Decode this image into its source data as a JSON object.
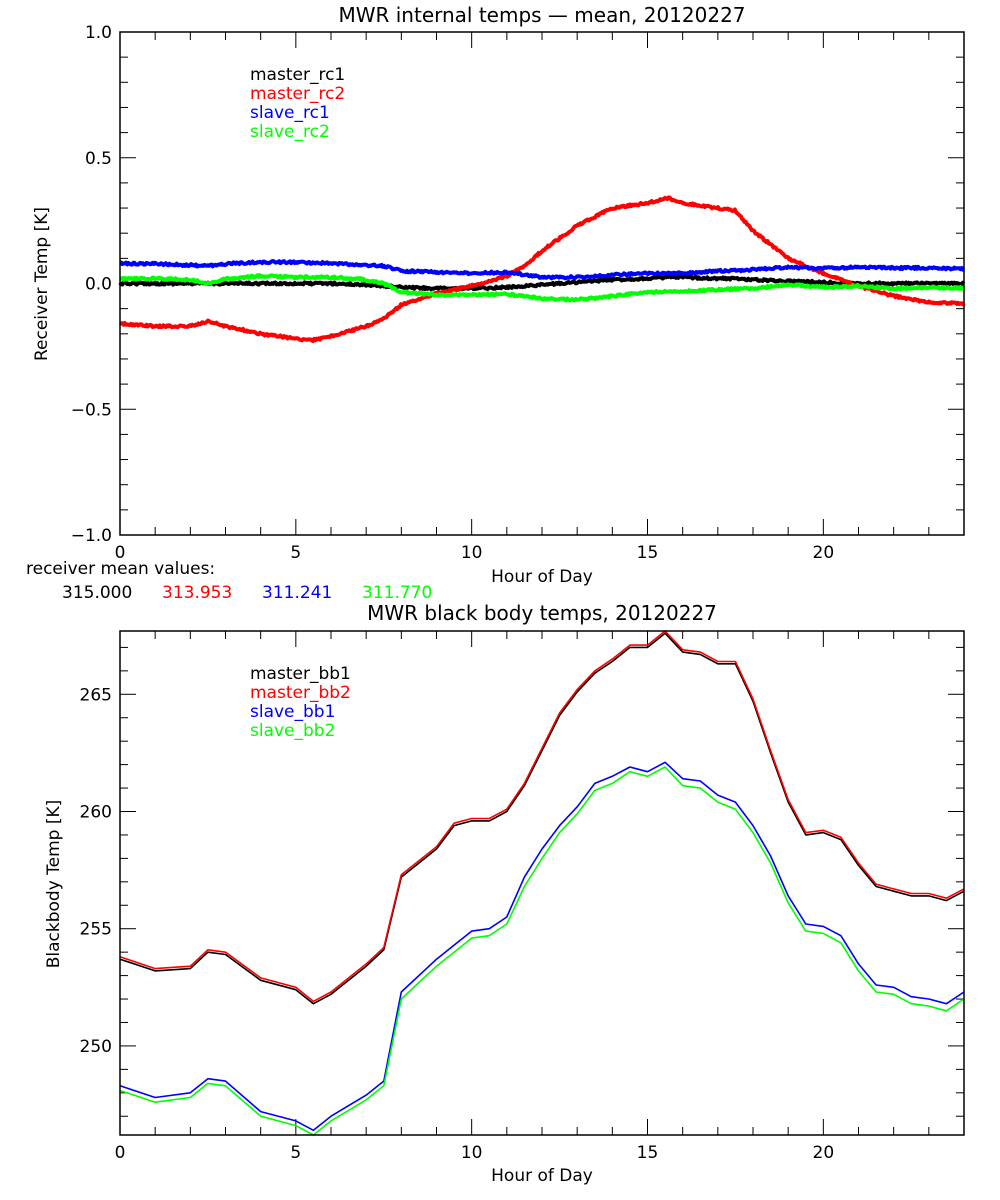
{
  "chart_data": [
    {
      "type": "line",
      "title": "MWR internal temps — mean, 20120227",
      "xlabel": "Hour of Day",
      "ylabel": "Receiver Temp [K]",
      "xlim": [
        0,
        24
      ],
      "ylim": [
        -1.0,
        1.0
      ],
      "xticks": [
        0,
        5,
        10,
        15,
        20
      ],
      "xtick_labels": [
        "0",
        "5",
        "10",
        "15",
        "20"
      ],
      "x_minor_step": 1,
      "yticks": [
        -1.0,
        -0.5,
        0.0,
        0.5,
        1.0
      ],
      "ytick_labels": [
        "−1.0",
        "−0.5",
        "0.0",
        "0.5",
        "1.0"
      ],
      "y_minor_step": 0.1,
      "grid": false,
      "legend_position": "top-left",
      "x": [
        0,
        1,
        2,
        2.5,
        3,
        4,
        5,
        5.5,
        6,
        7,
        7.5,
        8,
        9,
        10,
        11,
        11.5,
        12,
        13,
        14,
        15,
        15.6,
        16,
        17,
        17.5,
        18,
        19,
        20,
        21,
        22,
        23,
        24
      ],
      "series": [
        {
          "name": "master_rc1",
          "color": "#000000",
          "values": [
            0.0,
            0.0,
            0.0,
            0.0,
            0.0,
            0.0,
            0.0,
            0.0,
            0.0,
            -0.005,
            -0.01,
            -0.015,
            -0.02,
            -0.02,
            -0.015,
            -0.01,
            -0.005,
            0.005,
            0.015,
            0.02,
            0.025,
            0.025,
            0.02,
            0.02,
            0.015,
            0.01,
            0.005,
            0.0,
            0.0,
            0.0,
            0.0
          ]
        },
        {
          "name": "master_rc2",
          "color": "#ff0000",
          "values": [
            -0.16,
            -0.17,
            -0.17,
            -0.15,
            -0.17,
            -0.2,
            -0.22,
            -0.225,
            -0.21,
            -0.17,
            -0.14,
            -0.085,
            -0.04,
            -0.01,
            0.03,
            0.07,
            0.13,
            0.23,
            0.3,
            0.32,
            0.34,
            0.32,
            0.3,
            0.29,
            0.21,
            0.1,
            0.04,
            -0.01,
            -0.05,
            -0.075,
            -0.08
          ]
        },
        {
          "name": "slave_rc1",
          "color": "#0000ff",
          "values": [
            0.08,
            0.078,
            0.073,
            0.07,
            0.078,
            0.085,
            0.085,
            0.082,
            0.08,
            0.073,
            0.07,
            0.05,
            0.045,
            0.04,
            0.045,
            0.035,
            0.025,
            0.025,
            0.035,
            0.04,
            0.04,
            0.04,
            0.05,
            0.052,
            0.055,
            0.065,
            0.06,
            0.065,
            0.062,
            0.062,
            0.058
          ]
        },
        {
          "name": "slave_rc2",
          "color": "#00ff00",
          "values": [
            0.018,
            0.02,
            0.015,
            0.0,
            0.018,
            0.03,
            0.025,
            0.025,
            0.025,
            0.015,
            0.0,
            -0.035,
            -0.045,
            -0.045,
            -0.042,
            -0.05,
            -0.06,
            -0.065,
            -0.05,
            -0.035,
            -0.032,
            -0.03,
            -0.025,
            -0.022,
            -0.02,
            -0.005,
            -0.015,
            -0.01,
            -0.02,
            -0.016,
            -0.018
          ]
        }
      ],
      "annotation": {
        "label": "receiver mean values:",
        "values": [
          {
            "text": "315.000",
            "color": "#000000"
          },
          {
            "text": "313.953",
            "color": "#ff0000"
          },
          {
            "text": "311.241",
            "color": "#0000ff"
          },
          {
            "text": "311.770",
            "color": "#00ff00"
          }
        ]
      }
    },
    {
      "type": "line",
      "title": "MWR black body temps, 20120227",
      "xlabel": "Hour of Day",
      "ylabel": "Blackbody Temp [K]",
      "xlim": [
        0,
        24
      ],
      "ylim": [
        246.2,
        267.7
      ],
      "xticks": [
        0,
        5,
        10,
        15,
        20
      ],
      "xtick_labels": [
        "0",
        "5",
        "10",
        "15",
        "20"
      ],
      "x_minor_step": 1,
      "yticks": [
        250,
        255,
        260,
        265
      ],
      "ytick_labels": [
        "250",
        "255",
        "260",
        "265"
      ],
      "y_minor_step": 1,
      "grid": false,
      "legend_position": "top-left",
      "x": [
        0,
        1,
        2,
        2.5,
        3,
        4,
        5,
        5.5,
        6,
        7,
        7.5,
        8,
        9,
        9.5,
        10,
        10.5,
        11,
        11.5,
        12,
        12.5,
        13,
        13.5,
        14,
        14.5,
        15,
        15.5,
        16,
        16.5,
        17,
        17.5,
        18,
        18.5,
        19,
        19.5,
        20,
        20.5,
        21,
        21.5,
        22,
        22.5,
        23,
        23.5,
        24
      ],
      "series": [
        {
          "name": "master_bb1",
          "color": "#000000",
          "values": [
            253.7,
            253.2,
            253.3,
            254.0,
            253.9,
            252.8,
            252.4,
            251.8,
            252.2,
            253.4,
            254.1,
            257.2,
            258.4,
            259.4,
            259.6,
            259.6,
            260.0,
            261.1,
            262.6,
            264.1,
            265.1,
            265.9,
            266.4,
            267.0,
            267.0,
            267.6,
            266.8,
            266.7,
            266.3,
            266.3,
            264.7,
            262.5,
            260.4,
            259.0,
            259.1,
            258.8,
            257.7,
            256.8,
            256.6,
            256.4,
            256.4,
            256.2,
            256.6
          ]
        },
        {
          "name": "master_bb2",
          "color": "#ff0000",
          "values": [
            253.8,
            253.3,
            253.4,
            254.1,
            254.0,
            252.9,
            252.5,
            251.9,
            252.3,
            253.5,
            254.2,
            257.3,
            258.5,
            259.5,
            259.7,
            259.7,
            260.1,
            261.2,
            262.7,
            264.2,
            265.2,
            266.0,
            266.5,
            267.1,
            267.1,
            267.7,
            266.9,
            266.8,
            266.4,
            266.4,
            264.8,
            262.6,
            260.5,
            259.1,
            259.2,
            258.9,
            257.8,
            256.9,
            256.7,
            256.5,
            256.5,
            256.3,
            256.7
          ]
        },
        {
          "name": "slave_bb1",
          "color": "#0000ff",
          "values": [
            248.3,
            247.8,
            248.0,
            248.6,
            248.5,
            247.2,
            246.8,
            246.4,
            247.0,
            247.9,
            248.5,
            252.3,
            253.7,
            254.3,
            254.9,
            255.0,
            255.5,
            257.2,
            258.4,
            259.4,
            260.2,
            261.2,
            261.5,
            261.9,
            261.7,
            262.1,
            261.4,
            261.3,
            260.7,
            260.4,
            259.4,
            258.1,
            256.4,
            255.2,
            255.1,
            254.7,
            253.5,
            252.6,
            252.5,
            252.1,
            252.0,
            251.8,
            252.3
          ]
        },
        {
          "name": "slave_bb2",
          "color": "#00ff00",
          "values": [
            248.1,
            247.6,
            247.8,
            248.4,
            248.3,
            247.0,
            246.6,
            246.2,
            246.8,
            247.7,
            248.3,
            252.0,
            253.4,
            254.0,
            254.6,
            254.7,
            255.2,
            256.8,
            258.0,
            259.1,
            259.9,
            260.9,
            261.2,
            261.7,
            261.5,
            261.9,
            261.1,
            261.0,
            260.4,
            260.1,
            259.1,
            257.8,
            256.1,
            254.9,
            254.8,
            254.4,
            253.2,
            252.3,
            252.2,
            251.8,
            251.7,
            251.5,
            252.0
          ]
        }
      ]
    }
  ]
}
